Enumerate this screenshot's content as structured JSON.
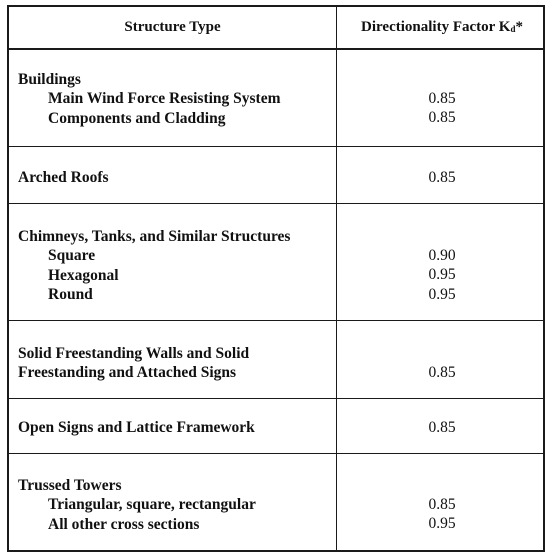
{
  "headers": {
    "structure_type": "Structure Type",
    "factor": "Directionality Factor K",
    "factor_sub": "d",
    "factor_suffix": "*"
  },
  "rows": [
    {
      "main": [
        "Buildings"
      ],
      "subs": [
        "Main Wind Force Resisting System",
        "Components and Cladding"
      ],
      "values": [
        "0.85",
        "0.85"
      ]
    },
    {
      "main": [
        "Arched Roofs"
      ],
      "subs": [],
      "values": [
        "0.85"
      ]
    },
    {
      "main": [
        "Chimneys, Tanks, and Similar Structures"
      ],
      "subs": [
        "Square",
        "Hexagonal",
        "Round"
      ],
      "values": [
        "0.90",
        "0.95",
        "0.95"
      ]
    },
    {
      "main": [
        "Solid Freestanding Walls and Solid",
        "Freestanding and Attached Signs"
      ],
      "subs": [],
      "values": [
        "0.85"
      ]
    },
    {
      "main": [
        "Open Signs and Lattice Framework"
      ],
      "subs": [],
      "values": [
        "0.85"
      ]
    },
    {
      "main": [
        "Trussed Towers"
      ],
      "subs": [
        "Triangular, square, rectangular",
        "All other cross sections"
      ],
      "values": [
        "0.85",
        "0.95"
      ]
    }
  ]
}
